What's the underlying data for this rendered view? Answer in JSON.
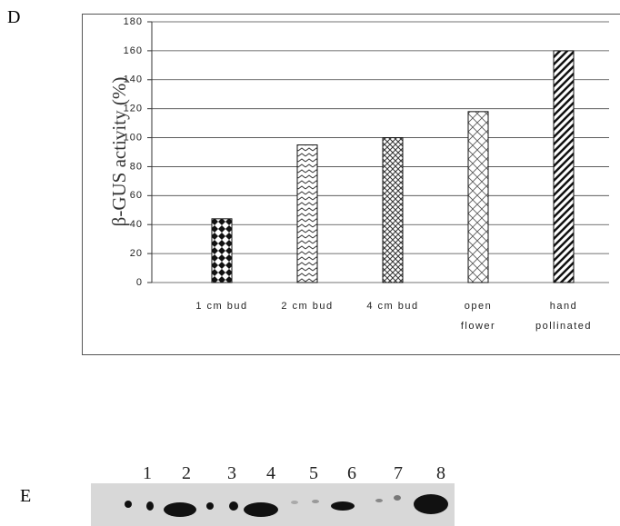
{
  "panel_labels": [
    "D",
    "E"
  ],
  "chart_data": {
    "type": "bar",
    "y_label": "β-GUS activity  (%)",
    "categories": [
      "1 cm bud",
      "2 cm bud",
      "4 cm bud",
      "open\nflower",
      "hand\npollinated"
    ],
    "values": [
      44,
      95,
      100,
      118,
      160
    ],
    "ylim": [
      0,
      180
    ],
    "yticks": [
      0,
      20,
      40,
      60,
      80,
      100,
      120,
      140,
      160,
      180
    ],
    "grid": true
  },
  "lanes": [
    "1",
    "2",
    "3",
    "4",
    "5",
    "6",
    "7",
    "8"
  ]
}
